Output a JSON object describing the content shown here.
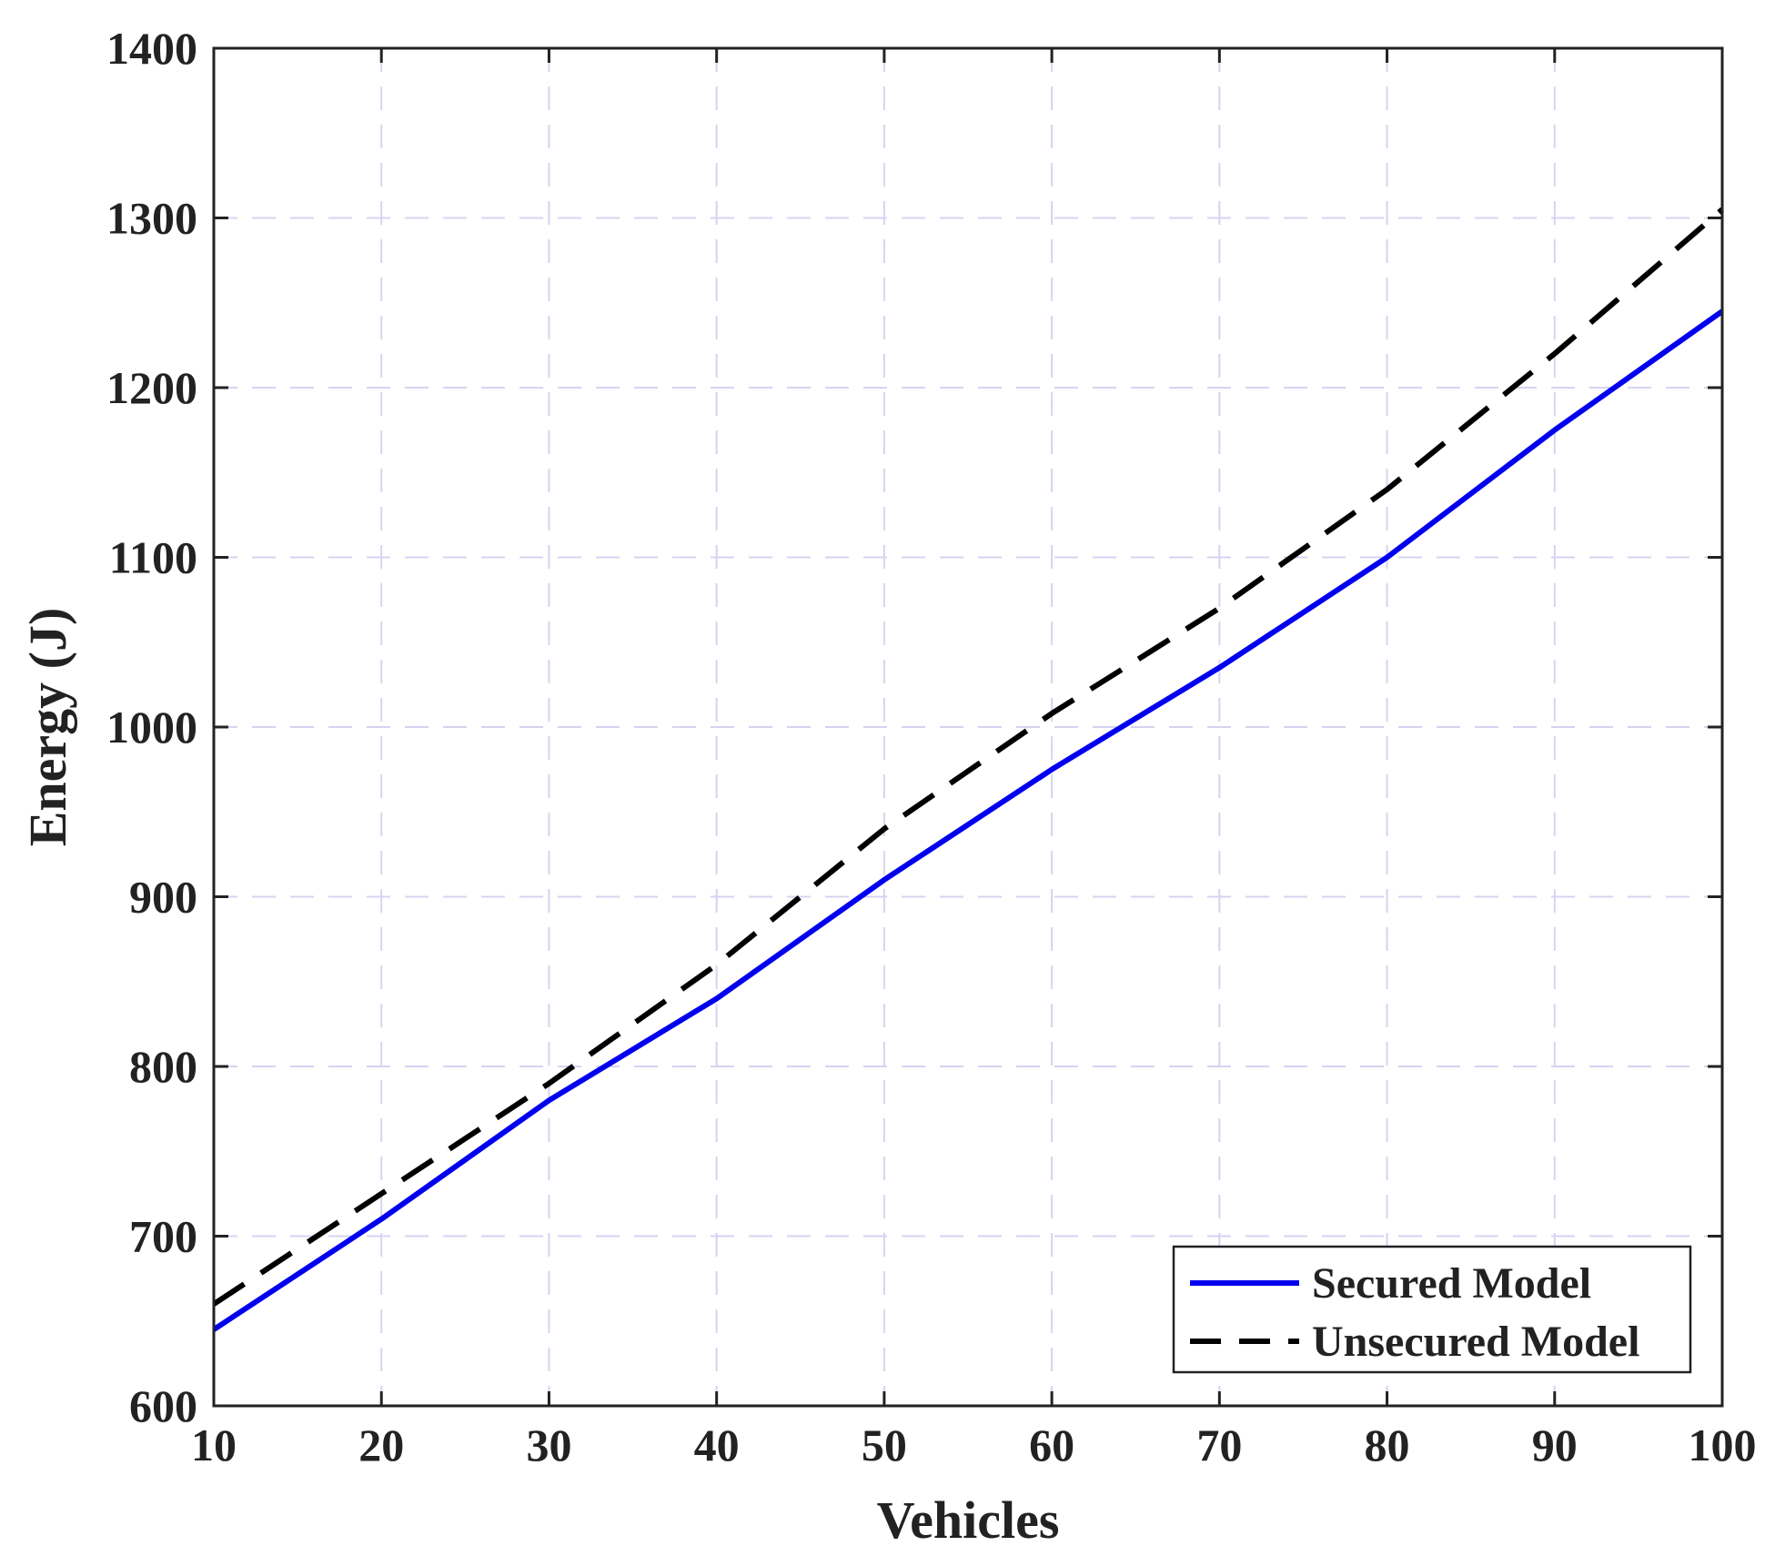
{
  "chart_data": {
    "type": "line",
    "title": "",
    "xlabel": "Vehicles",
    "ylabel": "Energy (J)",
    "xlim": [
      10,
      100
    ],
    "ylim": [
      600,
      1400
    ],
    "xticks": [
      10,
      20,
      30,
      40,
      50,
      60,
      70,
      80,
      90,
      100
    ],
    "yticks": [
      600,
      700,
      800,
      900,
      1000,
      1100,
      1200,
      1300,
      1400
    ],
    "grid": true,
    "legend_position": "bottom-right",
    "x": [
      10,
      20,
      30,
      40,
      50,
      60,
      70,
      80,
      90,
      100
    ],
    "series": [
      {
        "name": "Secured Model",
        "color": "#0000ee",
        "style": "solid",
        "values": [
          645,
          710,
          780,
          840,
          910,
          975,
          1035,
          1100,
          1175,
          1245
        ]
      },
      {
        "name": "Unsecured Model",
        "color": "#000000",
        "style": "dashed",
        "values": [
          660,
          725,
          790,
          860,
          940,
          1008,
          1070,
          1140,
          1220,
          1305
        ]
      }
    ]
  }
}
